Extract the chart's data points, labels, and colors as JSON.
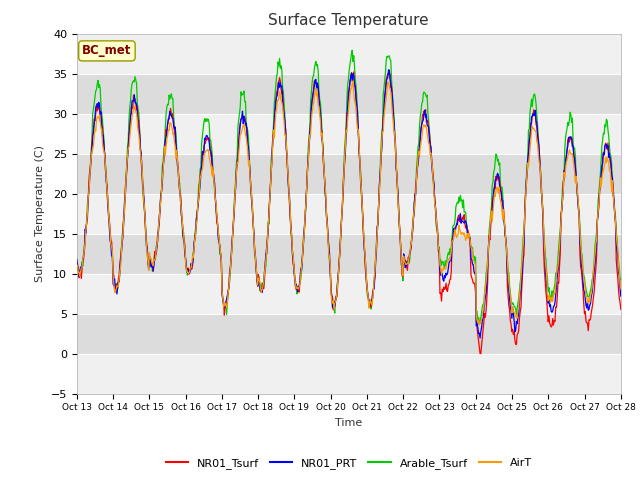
{
  "title": "Surface Temperature",
  "xlabel": "Time",
  "ylabel": "Surface Temperature (C)",
  "ylim": [
    -5,
    40
  ],
  "yticks": [
    -5,
    0,
    5,
    10,
    15,
    20,
    25,
    30,
    35,
    40
  ],
  "xtick_labels": [
    "Oct 13",
    "Oct 14",
    "Oct 15",
    "Oct 16",
    "Oct 17",
    "Oct 18",
    "Oct 19",
    "Oct 20",
    "Oct 21",
    "Oct 22",
    "Oct 23",
    "Oct 24",
    "Oct 25",
    "Oct 26",
    "Oct 27",
    "Oct 28"
  ],
  "series_colors": {
    "NR01_Tsurf": "#ff0000",
    "NR01_PRT": "#0000ff",
    "Arable_Tsurf": "#00cc00",
    "AirT": "#ff9900"
  },
  "legend_label": "BC_met",
  "fig_bg": "#ffffff",
  "plot_bg": "#ffffff",
  "band_light": "#f0f0f0",
  "band_dark": "#dcdcdc",
  "annotation_box_color": "#ffffcc",
  "annotation_text_color": "#800000",
  "annotation_edge_color": "#999900"
}
